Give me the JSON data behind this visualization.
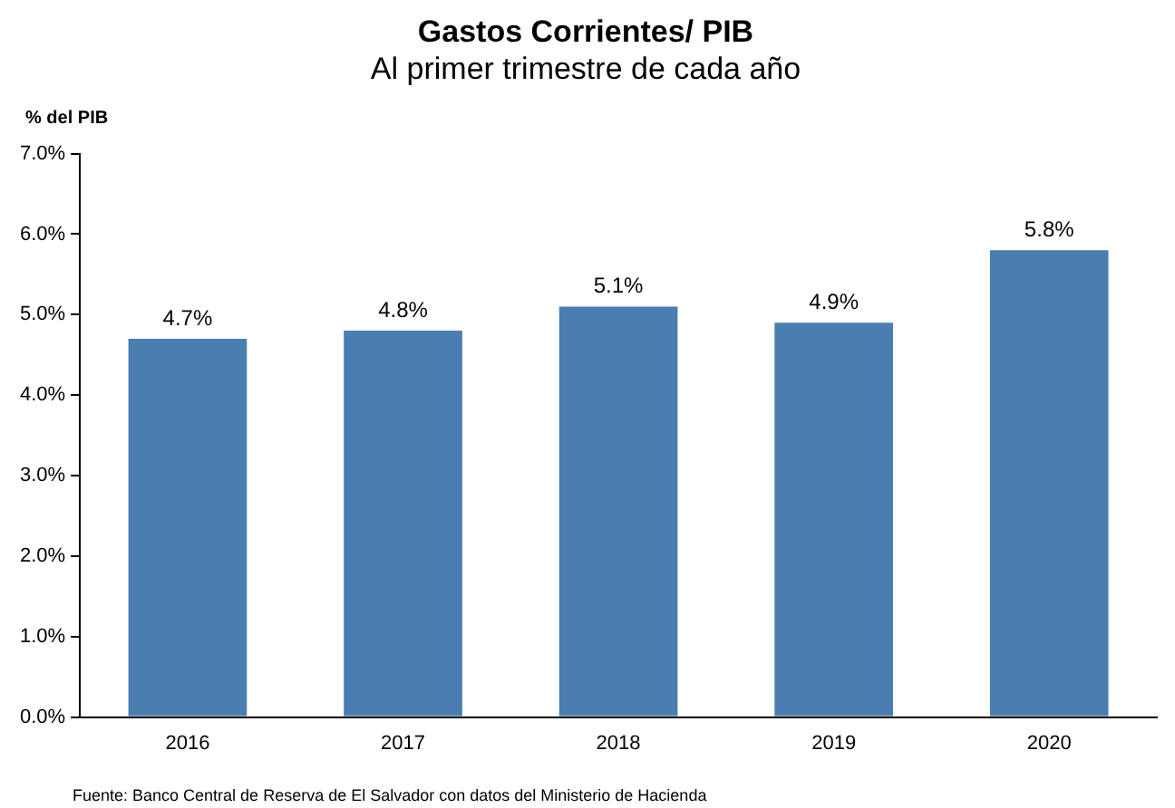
{
  "chart_data": {
    "type": "bar",
    "title": "Gastos Corrientes/ PIB",
    "subtitle": "Al primer trimestre de cada año",
    "ylabel": "% del PIB",
    "categories": [
      "2016",
      "2017",
      "2018",
      "2019",
      "2020"
    ],
    "values": [
      4.7,
      4.8,
      5.1,
      4.9,
      5.8
    ],
    "value_labels": [
      "4.7%",
      "4.8%",
      "5.1%",
      "4.9%",
      "5.8%"
    ],
    "color": "#4a7eb0",
    "ylim": [
      0,
      7
    ],
    "yticks": [
      {
        "value": 0,
        "label": "0.0%"
      },
      {
        "value": 1,
        "label": "1.0%"
      },
      {
        "value": 2,
        "label": "2.0%"
      },
      {
        "value": 3,
        "label": "3.0%"
      },
      {
        "value": 4,
        "label": "4.0%"
      },
      {
        "value": 5,
        "label": "5.0%"
      },
      {
        "value": 6,
        "label": "6.0%"
      },
      {
        "value": 7,
        "label": "7.0%"
      }
    ],
    "grid": false,
    "legend": false,
    "annotations": [
      "Fuente: Banco Central de Reserva de El Salvador con datos del Ministerio de Hacienda"
    ]
  }
}
